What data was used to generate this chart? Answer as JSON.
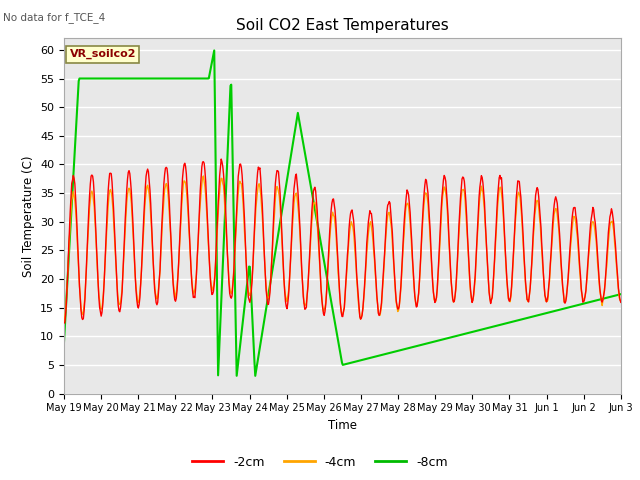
{
  "title": "Soil CO2 East Temperatures",
  "ylabel": "Soil Temperature (C)",
  "xlabel": "Time",
  "no_data_text": "No data for f_TCE_4",
  "annotation_text": "VR_soilco2",
  "ylim": [
    0,
    62
  ],
  "yticks": [
    0,
    5,
    10,
    15,
    20,
    25,
    30,
    35,
    40,
    45,
    50,
    55,
    60
  ],
  "legend_labels": [
    "-2cm",
    "-4cm",
    "-8cm"
  ],
  "legend_colors": [
    "#ff0000",
    "#ffa500",
    "#00bb00"
  ],
  "bg_color": "#e8e8e8",
  "line_2cm_color": "#ff0000",
  "line_4cm_color": "#ffa500",
  "line_8cm_color": "#00cc00",
  "x_tick_labels": [
    "May 19",
    "May 20",
    "May 21",
    "May 22",
    "May 23",
    "May 24",
    "May 25",
    "May 26",
    "May 27",
    "May 28",
    "May 29",
    "May 30",
    "May 31",
    "Jun 1",
    "Jun 2",
    "Jun 3"
  ]
}
